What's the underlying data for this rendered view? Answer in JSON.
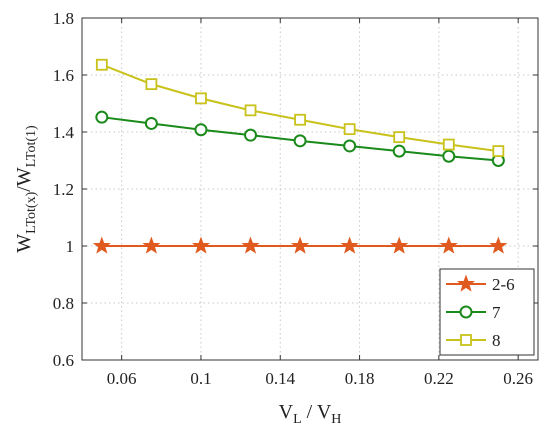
{
  "chart_data": {
    "type": "line",
    "xlabel_main": "V",
    "xlabel_sub1": "L",
    "xlabel_mid": " / V",
    "xlabel_sub2": "H",
    "ylabel_main": "W",
    "ylabel_sub1": "LTot(x)",
    "ylabel_mid": "/W",
    "ylabel_sub2": "LTot(1)",
    "xlim": [
      0.04,
      0.27
    ],
    "ylim": [
      0.6,
      1.8
    ],
    "xticks": [
      0.06,
      0.1,
      0.14,
      0.18,
      0.22,
      0.26
    ],
    "xtick_labels": [
      "0.06",
      "0.1",
      "0.14",
      "0.18",
      "0.22",
      "0.26"
    ],
    "yticks": [
      0.6,
      0.8,
      1.0,
      1.2,
      1.4,
      1.6,
      1.8
    ],
    "ytick_labels": [
      "0.6",
      "0.8",
      "1",
      "1.2",
      "1.4",
      "1.6",
      "1.8"
    ],
    "grid": true,
    "legend_position": "bottom-right",
    "x": [
      0.05,
      0.075,
      0.1,
      0.125,
      0.15,
      0.175,
      0.2,
      0.225,
      0.25
    ],
    "series": [
      {
        "name": "2-6",
        "marker": "star",
        "color": "#e05a1f",
        "values": [
          1.0,
          1.0,
          1.0,
          1.0,
          1.0,
          1.0,
          1.0,
          1.0,
          1.0
        ]
      },
      {
        "name": "7",
        "marker": "circle",
        "color": "#1a8a1a",
        "values": [
          1.452,
          1.43,
          1.408,
          1.389,
          1.369,
          1.351,
          1.333,
          1.315,
          1.3
        ]
      },
      {
        "name": "8",
        "marker": "square",
        "color": "#c8c21a",
        "values": [
          1.636,
          1.568,
          1.518,
          1.476,
          1.443,
          1.41,
          1.382,
          1.356,
          1.333
        ]
      }
    ]
  }
}
